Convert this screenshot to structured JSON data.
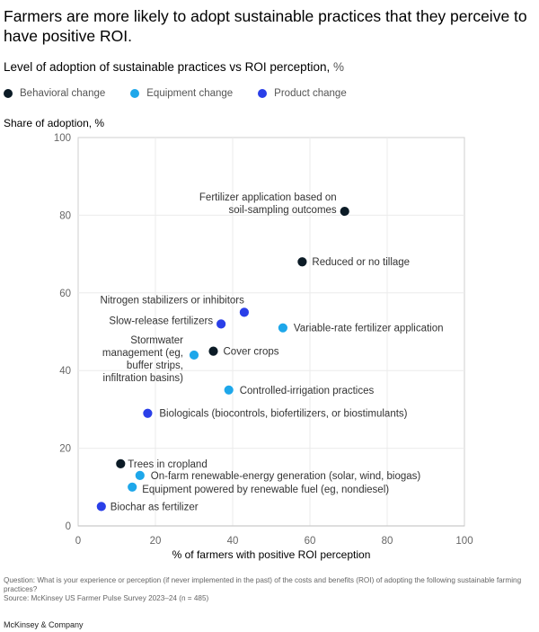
{
  "title": "Farmers are more likely to adopt sustainable practices that they perceive to have positive ROI.",
  "subtitle": "Level of adoption of sustainable practices vs ROI perception,",
  "subtitle_unit": "%",
  "legend": [
    {
      "label": "Behavioral change",
      "color": "#0b1b26"
    },
    {
      "label": "Equipment change",
      "color": "#1ea7ea"
    },
    {
      "label": "Product change",
      "color": "#2a3fe8"
    }
  ],
  "chart_data": {
    "type": "scatter",
    "ylabel": "Share of adoption, %",
    "xlabel": "% of farmers with positive ROI perception",
    "xlim": [
      0,
      100
    ],
    "ylim": [
      0,
      100
    ],
    "xticks": [
      0,
      20,
      40,
      60,
      80,
      100
    ],
    "yticks": [
      0,
      20,
      40,
      60,
      80,
      100
    ],
    "grid": true,
    "legend_position": "top",
    "series": [
      {
        "name": "Behavioral change",
        "color": "#0b1b26",
        "points": [
          {
            "label": "Fertilizer application based on soil-sampling outcomes",
            "x": 69,
            "y": 81
          },
          {
            "label": "Reduced or no tillage",
            "x": 58,
            "y": 68
          },
          {
            "label": "Cover crops",
            "x": 35,
            "y": 45
          },
          {
            "label": "Trees in cropland",
            "x": 11,
            "y": 16
          }
        ]
      },
      {
        "name": "Equipment change",
        "color": "#1ea7ea",
        "points": [
          {
            "label": "Variable-rate fertilizer application",
            "x": 53,
            "y": 51
          },
          {
            "label": "Stormwater management (eg, buffer strips, infiltration basins)",
            "x": 30,
            "y": 44
          },
          {
            "label": "Controlled-irrigation practices",
            "x": 39,
            "y": 35
          },
          {
            "label": "On-farm renewable-energy generation (solar, wind, biogas)",
            "x": 16,
            "y": 13
          },
          {
            "label": "Equipment powered by renewable fuel (eg, nondiesel)",
            "x": 14,
            "y": 10
          }
        ]
      },
      {
        "name": "Product change",
        "color": "#2a3fe8",
        "points": [
          {
            "label": "Nitrogen stabilizers or inhibitors",
            "x": 43,
            "y": 55
          },
          {
            "label": "Slow-release fertilizers",
            "x": 37,
            "y": 52
          },
          {
            "label": "Biologicals (biocontrols, biofertilizers, or biostimulants)",
            "x": 18,
            "y": 29
          },
          {
            "label": "Biochar as fertilizer",
            "x": 6,
            "y": 5
          }
        ]
      }
    ]
  },
  "footnote_question": "Question: What is your experience or perception (if never implemented in the past) of the costs and benefits (ROI) of adopting the following sustainable farming practices?",
  "footnote_source": "Source: McKinsey US Farmer Pulse Survey 2023–24 (n = 485)",
  "brand": "McKinsey & Company"
}
